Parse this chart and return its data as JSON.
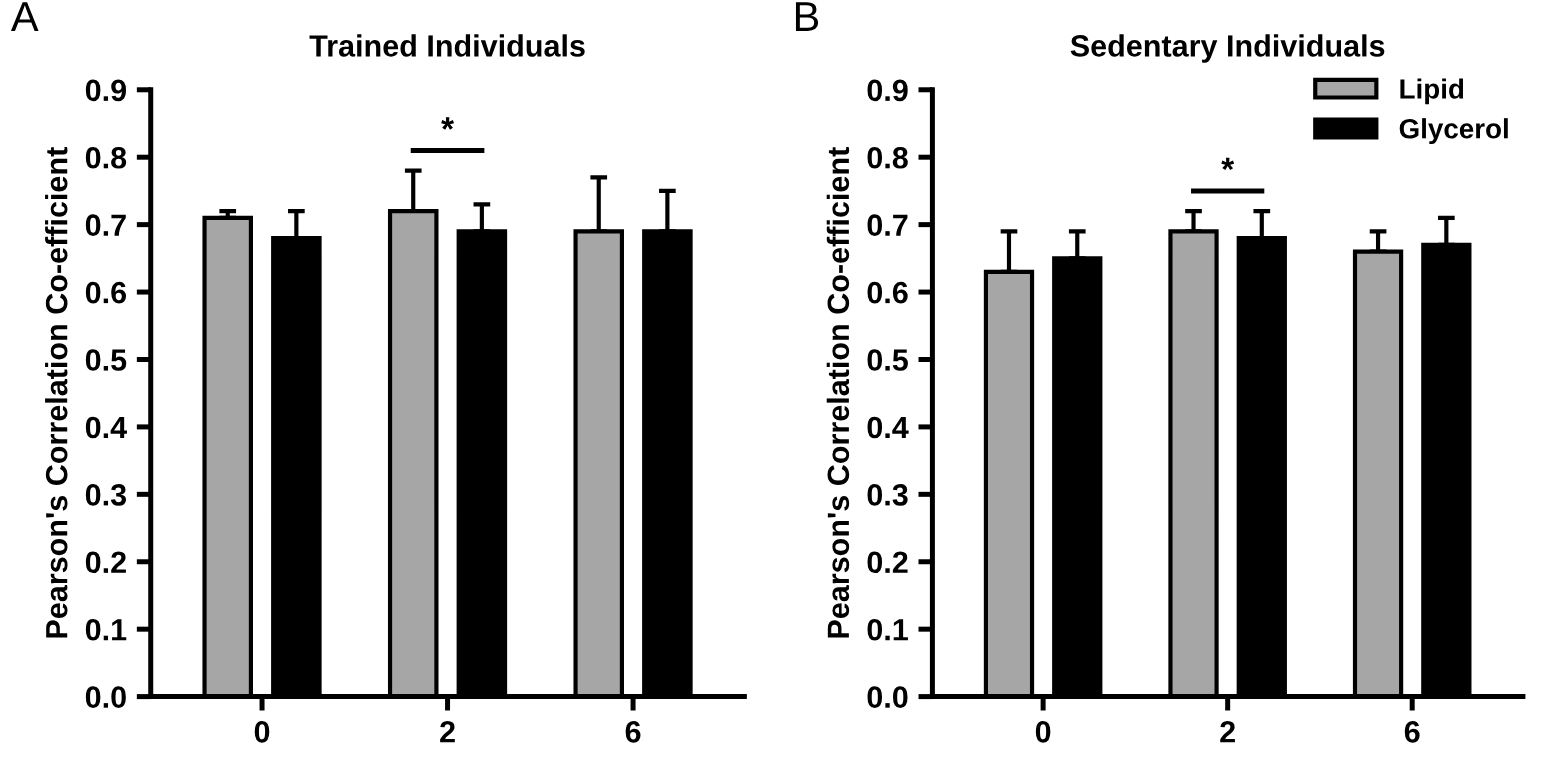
{
  "chart_data": [
    {
      "type": "bar",
      "title": "Trained Individuals",
      "ylabel": "Pearson's Correlation Co-efficient",
      "categories": [
        "0",
        "2",
        "6"
      ],
      "ylim": [
        0,
        0.9
      ],
      "yticks": [
        {
          "value": 0,
          "label": "0.0"
        },
        0.1,
        0.2,
        0.3,
        0.4,
        0.5,
        0.6,
        0.7,
        0.8,
        0.9
      ],
      "grid": false,
      "legend": false,
      "series": [
        {
          "color": "#a6a6a6",
          "values": [
            0.71,
            0.72,
            0.69
          ],
          "errors": [
            [
              0.71,
              0.72
            ],
            [
              0.72,
              0.78
            ],
            [
              0.69,
              0.77
            ]
          ]
        },
        {
          "color": "#000000",
          "values": [
            0.68,
            0.69,
            0.69
          ],
          "errors": [
            [
              0.68,
              0.72
            ],
            [
              0.69,
              0.73
            ],
            [
              0.69,
              0.75
            ]
          ]
        }
      ],
      "annotations": [
        "A",
        "*"
      ]
    },
    {
      "type": "bar",
      "title": "Sedentary Individuals",
      "ylabel": "Pearson's Correlation Co-efficient",
      "categories": [
        "0",
        "2",
        "6"
      ],
      "ylim": [
        0,
        0.9
      ],
      "yticks": [
        {
          "value": 0,
          "label": "0.0"
        },
        0.1,
        0.2,
        0.3,
        0.4,
        0.5,
        0.6,
        0.7,
        0.8,
        0.9
      ],
      "grid": false,
      "legend": "top right",
      "series": [
        {
          "name": "Lipid",
          "color": "#a6a6a6",
          "values": [
            0.63,
            0.69,
            0.66
          ],
          "errors": [
            [
              0.63,
              0.69
            ],
            [
              0.69,
              0.72
            ],
            [
              0.66,
              0.69
            ]
          ]
        },
        {
          "name": "Glycerol",
          "color": "#000000",
          "values": [
            0.65,
            0.68,
            0.67
          ],
          "errors": [
            [
              0.65,
              0.69
            ],
            [
              0.68,
              0.72
            ],
            [
              0.67,
              0.71
            ]
          ]
        }
      ],
      "annotations": [
        "B",
        "*"
      ]
    }
  ]
}
